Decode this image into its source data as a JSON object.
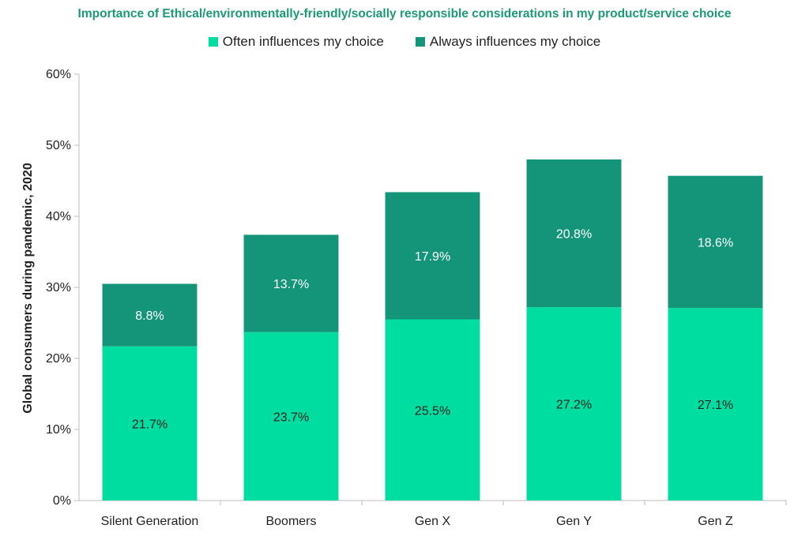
{
  "chart_data": {
    "type": "bar",
    "stacked": true,
    "title": "Importance of Ethical/environmentally-friendly/socially responsible considerations in my product/service choice",
    "xlabel": "",
    "ylabel": "Global consumers during pandemic, 2020",
    "categories": [
      "Silent Generation",
      "Boomers",
      "Gen X",
      "Gen Y",
      "Gen Z"
    ],
    "series": [
      {
        "name": "Often influences my choice",
        "color": "#00dda0",
        "label_color": "#222222",
        "values": [
          21.7,
          23.7,
          25.5,
          27.2,
          27.1
        ],
        "labels": [
          "21.7%",
          "23.7%",
          "25.5%",
          "27.2%",
          "27.1%"
        ]
      },
      {
        "name": "Always influences my choice",
        "color": "#14957a",
        "label_color": "#ffffff",
        "values": [
          8.8,
          13.7,
          17.9,
          20.8,
          18.6
        ],
        "labels": [
          "8.8%",
          "13.7%",
          "17.9%",
          "20.8%",
          "18.6%"
        ]
      }
    ],
    "ylim": [
      0,
      60
    ],
    "yticks": [
      0,
      10,
      20,
      30,
      40,
      50,
      60
    ],
    "ytick_labels": [
      "0%",
      "10%",
      "20%",
      "30%",
      "40%",
      "50%",
      "60%"
    ],
    "grid": false,
    "legend_position": "top-center"
  }
}
